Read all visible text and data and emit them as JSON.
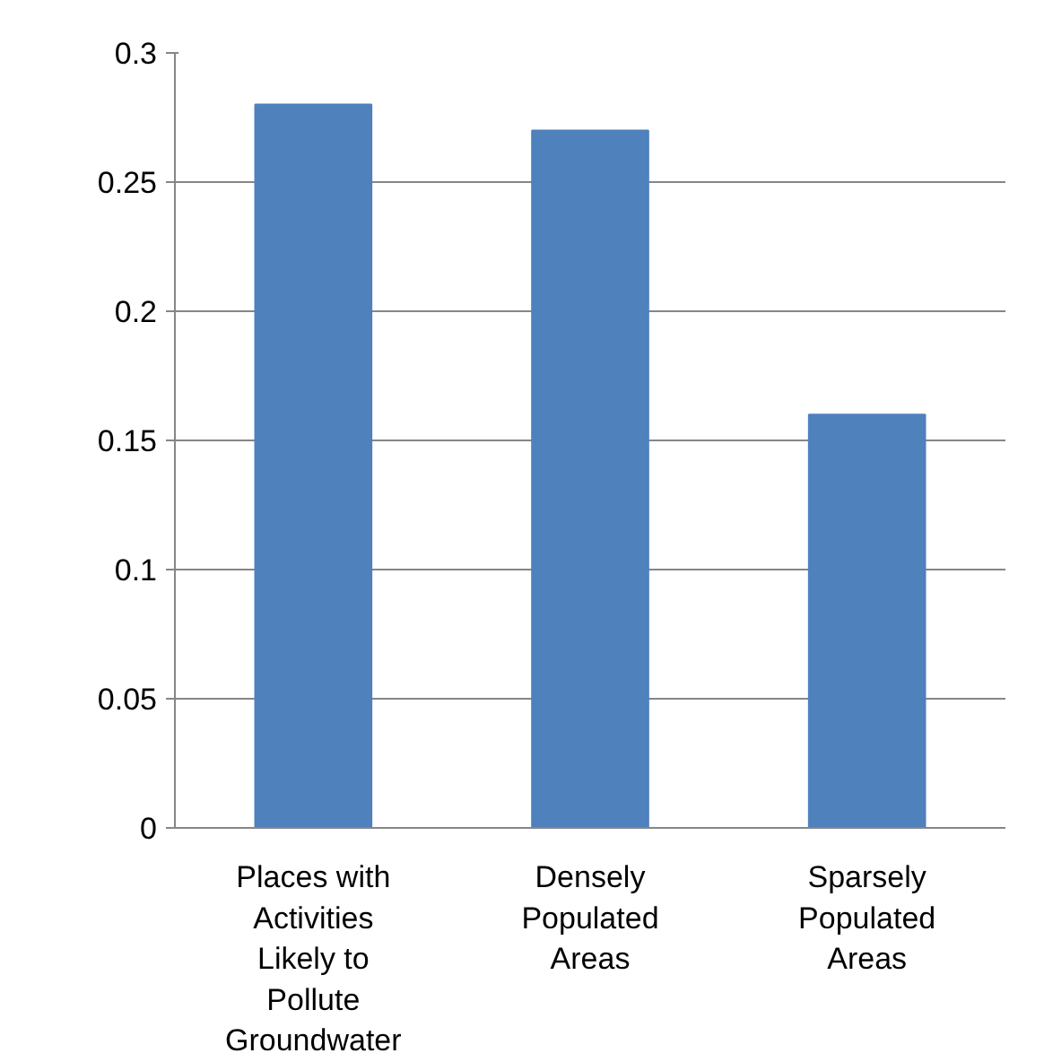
{
  "chart_data": {
    "type": "bar",
    "categories": [
      "Places with Activities Likely to Pollute Groundwater",
      "Densely Populated Areas",
      "Sparsely Populated Areas"
    ],
    "values": [
      0.28,
      0.27,
      0.16
    ],
    "color": "#4f81bd",
    "ylim": [
      0,
      0.3
    ],
    "yticks": [
      0,
      0.05,
      0.1,
      0.15,
      0.2,
      0.25,
      0.3
    ],
    "grid": "y"
  }
}
